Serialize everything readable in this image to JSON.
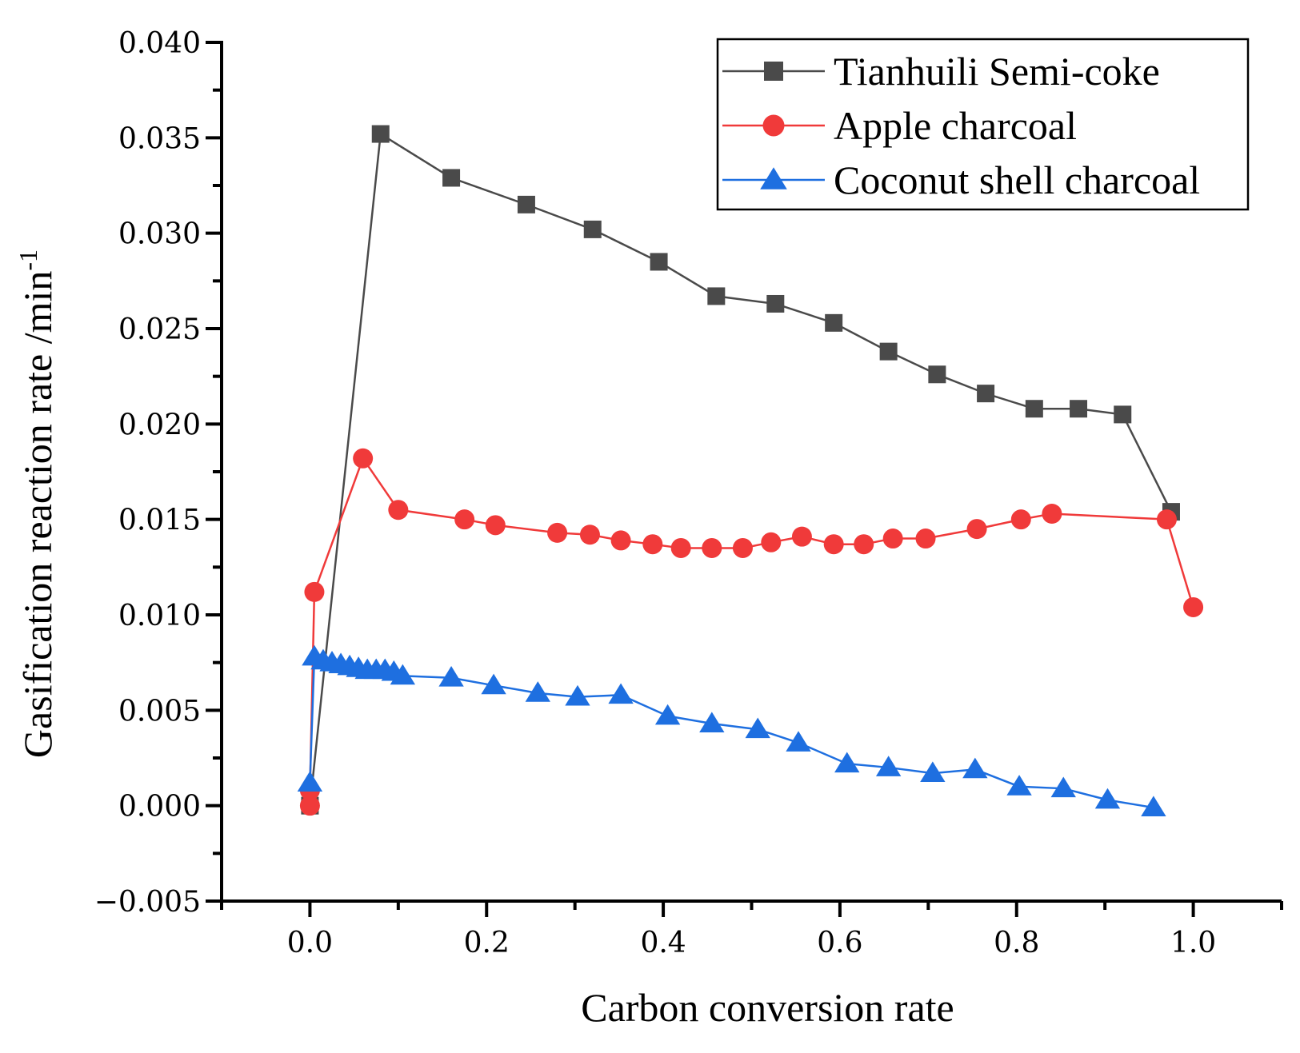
{
  "chart_data": {
    "type": "line",
    "title": "",
    "xlabel": "Carbon conversion rate",
    "ylabel": "Gasification reaction rate /min",
    "ylabel_superscript": "-1",
    "xlim": [
      -0.1,
      1.1
    ],
    "ylim": [
      -0.005,
      0.04
    ],
    "xticks": [
      0.0,
      0.2,
      0.4,
      0.6,
      0.8,
      1.0
    ],
    "xtick_labels": [
      "0.0",
      "0.2",
      "0.4",
      "0.6",
      "0.8",
      "1.0"
    ],
    "yticks": [
      -0.005,
      0.0,
      0.005,
      0.01,
      0.015,
      0.02,
      0.025,
      0.03,
      0.035,
      0.04
    ],
    "ytick_labels": [
      "−0.005",
      "0.000",
      "0.005",
      "0.010",
      "0.015",
      "0.020",
      "0.025",
      "0.030",
      "0.035",
      "0.040"
    ],
    "grid": false,
    "legend_position": "top-right",
    "series": [
      {
        "name": "Tianhuili Semi-coke",
        "color": "#4a4a4a",
        "marker": "square",
        "x": [
          0.0,
          0.08,
          0.16,
          0.245,
          0.32,
          0.395,
          0.46,
          0.527,
          0.593,
          0.655,
          0.71,
          0.765,
          0.82,
          0.87,
          0.92,
          0.975
        ],
        "y": [
          0.0,
          0.0352,
          0.0329,
          0.0315,
          0.0302,
          0.0285,
          0.0267,
          0.0263,
          0.0253,
          0.0238,
          0.0226,
          0.0216,
          0.0208,
          0.0208,
          0.0205,
          0.0154
        ]
      },
      {
        "name": "Apple charcoal",
        "color": "#f03a3a",
        "marker": "circle",
        "x": [
          0.0,
          0.0,
          0.005,
          0.06,
          0.1,
          0.175,
          0.21,
          0.28,
          0.317,
          0.352,
          0.388,
          0.42,
          0.455,
          0.49,
          0.522,
          0.557,
          0.593,
          0.627,
          0.66,
          0.697,
          0.755,
          0.805,
          0.84,
          0.97,
          1.0
        ],
        "y": [
          0.0,
          0.0008,
          0.0112,
          0.0182,
          0.0155,
          0.015,
          0.0147,
          0.0143,
          0.0142,
          0.0139,
          0.0137,
          0.0135,
          0.0135,
          0.0135,
          0.0138,
          0.0141,
          0.0137,
          0.0137,
          0.014,
          0.014,
          0.0145,
          0.015,
          0.0153,
          0.015,
          0.0104
        ]
      },
      {
        "name": "Coconut shell charcoal",
        "color": "#1e6fe0",
        "marker": "triangle",
        "x": [
          0.0,
          0.005,
          0.015,
          0.025,
          0.035,
          0.045,
          0.055,
          0.065,
          0.075,
          0.085,
          0.095,
          0.105,
          0.16,
          0.208,
          0.258,
          0.303,
          0.352,
          0.405,
          0.455,
          0.507,
          0.553,
          0.608,
          0.655,
          0.705,
          0.753,
          0.803,
          0.853,
          0.903,
          0.955
        ],
        "y": [
          0.0012,
          0.0078,
          0.0076,
          0.0075,
          0.0074,
          0.0073,
          0.0072,
          0.0071,
          0.0071,
          0.0071,
          0.007,
          0.0068,
          0.0067,
          0.0063,
          0.0059,
          0.0057,
          0.0058,
          0.0047,
          0.0043,
          0.004,
          0.0033,
          0.0022,
          0.002,
          0.0017,
          0.0019,
          0.001,
          0.0009,
          0.0003,
          -0.0001
        ]
      }
    ]
  }
}
